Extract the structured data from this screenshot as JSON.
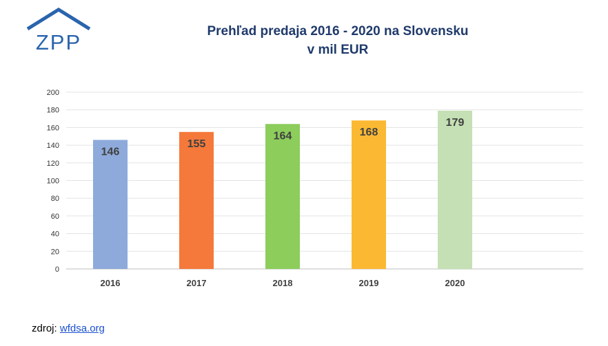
{
  "logo": {
    "text": "ZPP",
    "color": "#2a64ad"
  },
  "title_line1": "Prehľad predaja 2016 - 2020 na Slovensku",
  "title_line2": "v mil EUR",
  "source": {
    "label": "zdroj:",
    "link": "wfdsa.org"
  },
  "chart_data": {
    "type": "bar",
    "title": "Prehľad predaja 2016 - 2020 na Slovensku v mil EUR",
    "categories": [
      "2016",
      "2017",
      "2018",
      "2019",
      "2020"
    ],
    "values": [
      146,
      155,
      164,
      168,
      179
    ],
    "colors": [
      "#8eaadb",
      "#f4793b",
      "#8ccd5b",
      "#fbb933",
      "#c5e0b4"
    ],
    "ylim": [
      0,
      200
    ],
    "yticks": [
      0,
      20,
      40,
      60,
      80,
      100,
      120,
      140,
      160,
      180,
      200
    ],
    "grid": true,
    "data_labels": true,
    "xlabel": "",
    "ylabel": ""
  }
}
